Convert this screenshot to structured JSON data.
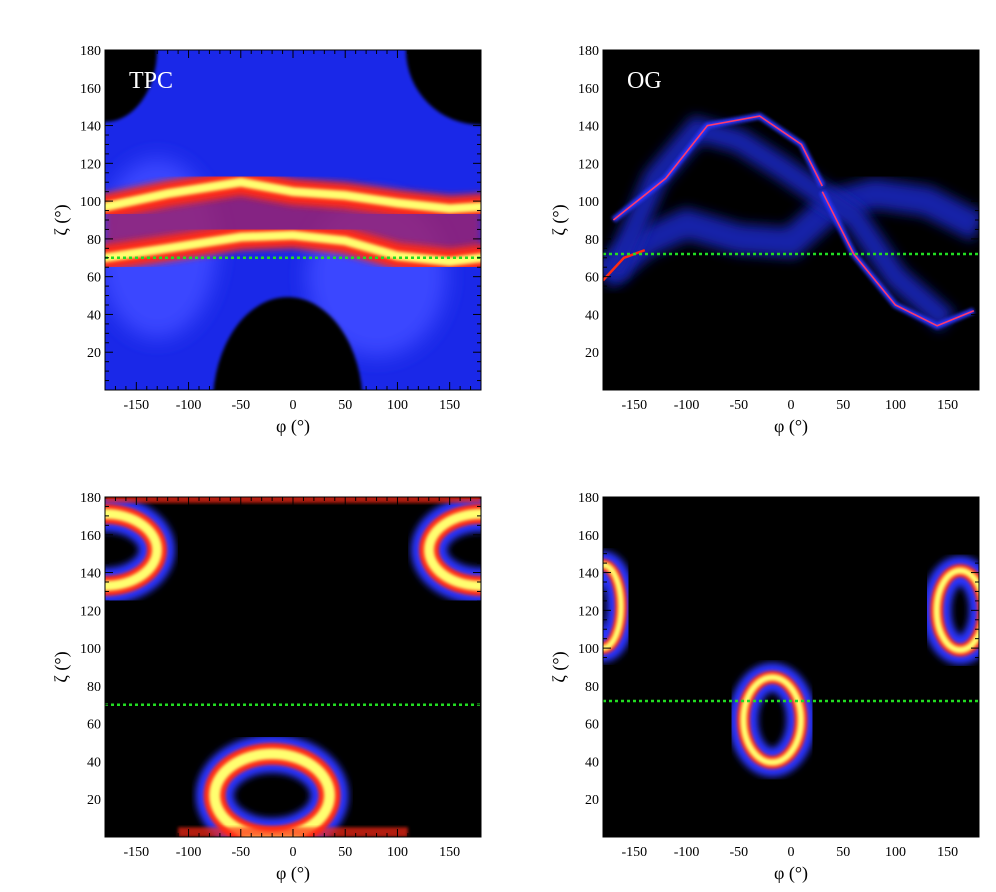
{
  "figure": {
    "colors": {
      "background": "#000000",
      "low": "#0a1060",
      "mid": "#2a36ff",
      "high": "#ff2a12",
      "peak": "#ffff70",
      "reference_line": "#22dd22"
    }
  },
  "chart_data": [
    {
      "type": "heatmap",
      "title": "TPC",
      "xlabel": "φ (°)",
      "ylabel": "ζ (°)",
      "xlim": [
        -180,
        180
      ],
      "ylim": [
        0,
        180
      ],
      "xticks": [
        -150,
        -100,
        -50,
        0,
        50,
        100,
        150
      ],
      "yticks": [
        20,
        40,
        60,
        80,
        100,
        120,
        140,
        160,
        180
      ],
      "reference_line": {
        "y": 70,
        "style": "dotted",
        "color": "#22dd22"
      },
      "features": {
        "background": "blue",
        "bright_band_1": {
          "phi": [
            -180,
            -120,
            -50,
            0,
            50,
            100,
            150,
            180
          ],
          "zeta": [
            97,
            104,
            110,
            105,
            103,
            99,
            96,
            97
          ]
        },
        "bright_band_2": {
          "phi": [
            -180,
            -120,
            -50,
            0,
            50,
            100,
            150,
            180
          ],
          "zeta": [
            70,
            75,
            81,
            82,
            79,
            71,
            68,
            70
          ]
        },
        "dark_regions": [
          "top-left corner",
          "top-right corner",
          "bottom center lobe φ -70..70, ζ 0..43"
        ]
      }
    },
    {
      "type": "heatmap",
      "title": "OG",
      "xlabel": "φ (°)",
      "ylabel": "ζ (°)",
      "xlim": [
        -180,
        180
      ],
      "ylim": [
        0,
        180
      ],
      "xticks": [
        -150,
        -100,
        -50,
        0,
        50,
        100,
        150
      ],
      "yticks": [
        20,
        40,
        60,
        80,
        100,
        120,
        140,
        160,
        180
      ],
      "reference_line": {
        "y": 72,
        "style": "dotted",
        "color": "#22dd22"
      },
      "features": {
        "background": "black",
        "caustic_1": {
          "phi": [
            -170,
            -120,
            -80,
            -30,
            10,
            30
          ],
          "zeta": [
            90,
            112,
            140,
            145,
            130,
            108
          ]
        },
        "caustic_2": {
          "phi": [
            30,
            60,
            100,
            140,
            175
          ],
          "zeta": [
            105,
            72,
            45,
            34,
            42
          ]
        }
      }
    },
    {
      "type": "heatmap",
      "title": "",
      "xlabel": "φ (°)",
      "ylabel": "ζ (°)",
      "xlim": [
        -180,
        180
      ],
      "ylim": [
        0,
        180
      ],
      "xticks": [
        -150,
        -100,
        -50,
        0,
        50,
        100,
        150
      ],
      "yticks": [
        20,
        40,
        60,
        80,
        100,
        120,
        140,
        160,
        180
      ],
      "reference_line": {
        "y": 70,
        "style": "dotted",
        "color": "#22dd22"
      },
      "features": {
        "background": "black",
        "ring_bottom": {
          "phi_center": -20,
          "zeta_center": 22,
          "half_width_phi": 55,
          "top_zeta": 44
        },
        "ring_top_left": {
          "phi_center": -180,
          "zeta_center": 152
        },
        "ring_top_right": {
          "phi_center": 180,
          "zeta_center": 152
        }
      }
    },
    {
      "type": "heatmap",
      "title": "",
      "xlabel": "φ (°)",
      "ylabel": "ζ (°)",
      "xlim": [
        -180,
        180
      ],
      "ylim": [
        0,
        180
      ],
      "xticks": [
        -150,
        -100,
        -50,
        0,
        50,
        100,
        150
      ],
      "yticks": [
        20,
        40,
        60,
        80,
        100,
        120,
        140,
        160,
        180
      ],
      "reference_line": {
        "y": 72,
        "style": "dotted",
        "color": "#22dd22"
      },
      "features": {
        "background": "black",
        "ring_center": {
          "phi_center": -18,
          "zeta_center": 62,
          "phi_range": [
            -45,
            10
          ],
          "zeta_range": [
            40,
            85
          ]
        },
        "ring_right": {
          "phi_center": 162,
          "zeta_center": 120,
          "phi_range": [
            135,
            180
          ],
          "zeta_range": [
            100,
            142
          ]
        },
        "ring_left_edge": {
          "phi_center": -180,
          "zeta_center": 122,
          "zeta_range": [
            98,
            142
          ]
        }
      }
    }
  ]
}
